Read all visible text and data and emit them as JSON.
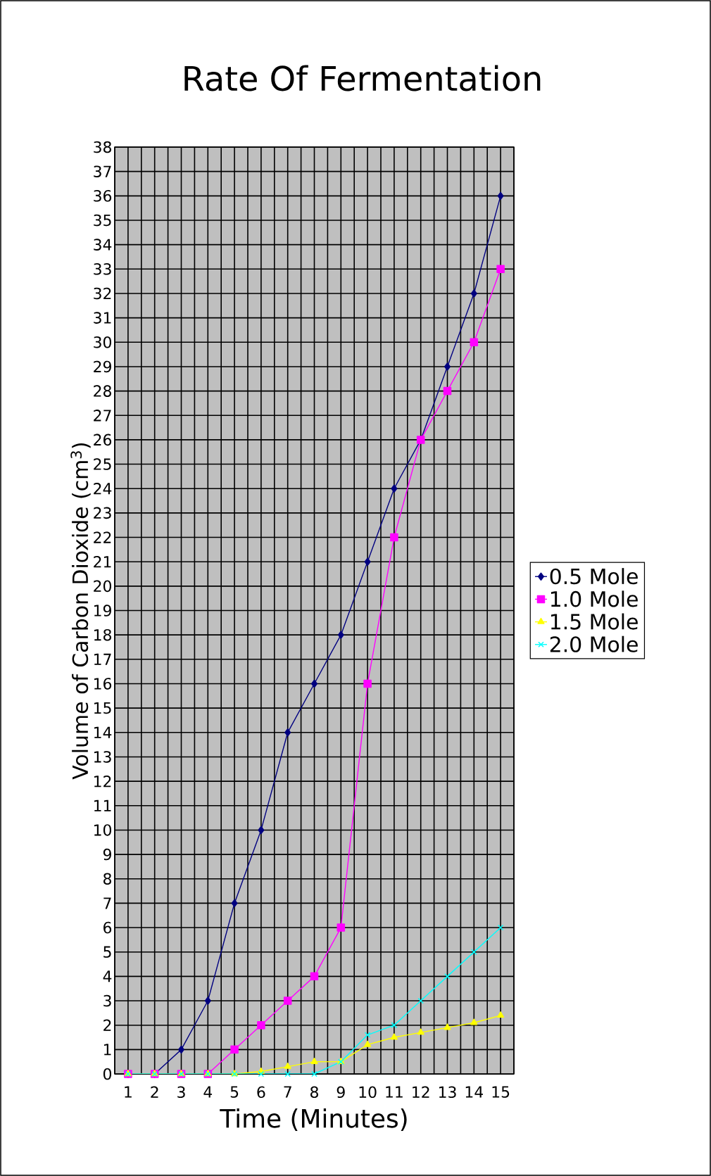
{
  "chart_data": {
    "type": "line",
    "title": "Rate Of Fermentation",
    "xlabel": "Time (Minutes)",
    "ylabel": "Volume of Carbon Dioxide (cm$^{3}$)",
    "categories": [
      "1",
      "2",
      "3",
      "4",
      "5",
      "6",
      "7",
      "8",
      "9",
      "10",
      "11",
      "12",
      "13",
      "14",
      "15"
    ],
    "series": [
      {
        "name": "0.5 Mole",
        "color": "#000080",
        "marker": "diamond",
        "values": [
          0,
          0,
          1,
          3,
          7,
          10,
          14,
          16,
          18,
          21,
          24,
          26,
          29,
          32,
          36
        ]
      },
      {
        "name": "1.0 Mole",
        "color": "#ff00ff",
        "marker": "square",
        "values": [
          0,
          0,
          0,
          0,
          1,
          2,
          3,
          4,
          6,
          16,
          22,
          26,
          28,
          30,
          33
        ]
      },
      {
        "name": "1.5 Mole",
        "color": "#ffff00",
        "marker": "triangle",
        "values": [
          0,
          0,
          0,
          0,
          0,
          0.1,
          0.3,
          0.5,
          0.5,
          1.2,
          1.5,
          1.7,
          1.9,
          2.1,
          2.4
        ]
      },
      {
        "name": "2.0 Mole",
        "color": "#00ffff",
        "marker": "cross",
        "values": [
          0,
          0,
          0,
          0,
          0,
          0,
          0,
          0,
          0.5,
          1.6,
          2,
          3,
          4,
          5,
          6
        ]
      }
    ],
    "ylim": [
      0,
      38
    ],
    "yticks": [
      0,
      1,
      2,
      3,
      4,
      5,
      6,
      7,
      8,
      9,
      10,
      11,
      12,
      13,
      14,
      15,
      16,
      17,
      18,
      19,
      20,
      21,
      22,
      23,
      24,
      25,
      26,
      27,
      28,
      29,
      30,
      31,
      32,
      33,
      34,
      35,
      36,
      37,
      38
    ],
    "grid": true,
    "legend": "right",
    "line_style": "solid"
  }
}
